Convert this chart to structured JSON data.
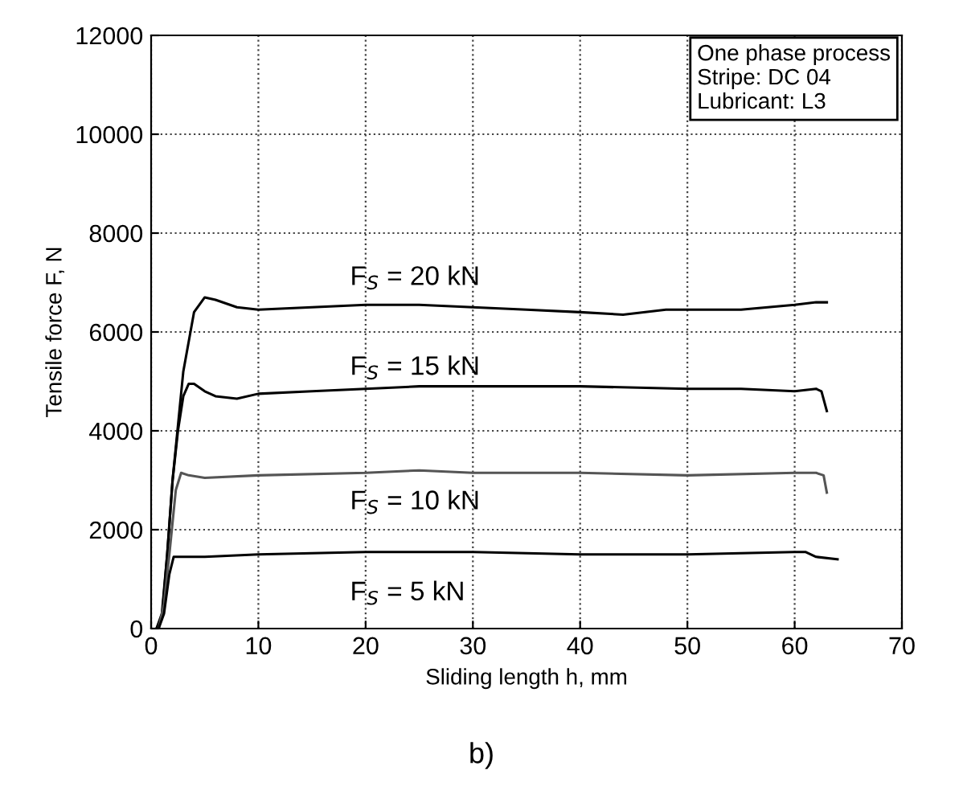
{
  "chart_data": {
    "type": "line",
    "xlabel": "Sliding length h, mm",
    "ylabel": "Tensile force F, N",
    "xlim": [
      0,
      70
    ],
    "ylim": [
      0,
      12000
    ],
    "xticks": [
      0,
      10,
      20,
      30,
      40,
      50,
      60,
      70
    ],
    "yticks": [
      0,
      2000,
      4000,
      6000,
      8000,
      10000,
      12000
    ],
    "grid": true,
    "marker": "none",
    "line_style": "solid",
    "series": [
      {
        "name": "F$_{S}$ = 20 kN",
        "color": "#000000",
        "x": [
          0.5,
          1,
          1.5,
          2,
          3,
          4,
          5,
          6,
          8,
          10,
          15,
          20,
          25,
          30,
          35,
          40,
          44,
          48,
          50,
          55,
          60,
          62,
          63
        ],
        "values": [
          0,
          200,
          1500,
          3000,
          5200,
          6400,
          6700,
          6650,
          6500,
          6450,
          6500,
          6550,
          6550,
          6500,
          6450,
          6400,
          6350,
          6450,
          6450,
          6450,
          6550,
          6600,
          6600
        ]
      },
      {
        "name": "F$_{S}$ = 15 kN",
        "color": "#000000",
        "x": [
          0.5,
          1,
          1.5,
          2,
          2.5,
          3,
          3.5,
          4,
          5,
          6,
          8,
          10,
          15,
          20,
          25,
          30,
          40,
          50,
          55,
          60,
          62,
          62.5,
          63
        ],
        "values": [
          0,
          300,
          1500,
          3000,
          4000,
          4700,
          4950,
          4950,
          4800,
          4700,
          4650,
          4750,
          4800,
          4850,
          4900,
          4900,
          4900,
          4850,
          4850,
          4800,
          4850,
          4800,
          4400
        ]
      },
      {
        "name": "F$_{S}$ = 10 kN",
        "color": "#555555",
        "x": [
          0.7,
          1.2,
          1.7,
          2.3,
          2.8,
          3.5,
          5,
          10,
          20,
          25,
          30,
          40,
          50,
          60,
          62,
          62.7,
          63
        ],
        "values": [
          0,
          500,
          1500,
          2800,
          3150,
          3100,
          3050,
          3100,
          3150,
          3200,
          3150,
          3150,
          3100,
          3150,
          3150,
          3100,
          2750
        ]
      },
      {
        "name": "F$_{S}$ = 5 kN",
        "color": "#000000",
        "x": [
          0.7,
          1.2,
          1.7,
          2.1,
          5,
          10,
          20,
          30,
          40,
          50,
          60,
          61,
          62,
          64
        ],
        "values": [
          0,
          300,
          1100,
          1450,
          1450,
          1500,
          1550,
          1550,
          1500,
          1500,
          1550,
          1550,
          1450,
          1400
        ]
      }
    ],
    "annotations": [
      "One phase process\nStripe: DC 04\nLubricant: L3",
      "b)"
    ]
  }
}
